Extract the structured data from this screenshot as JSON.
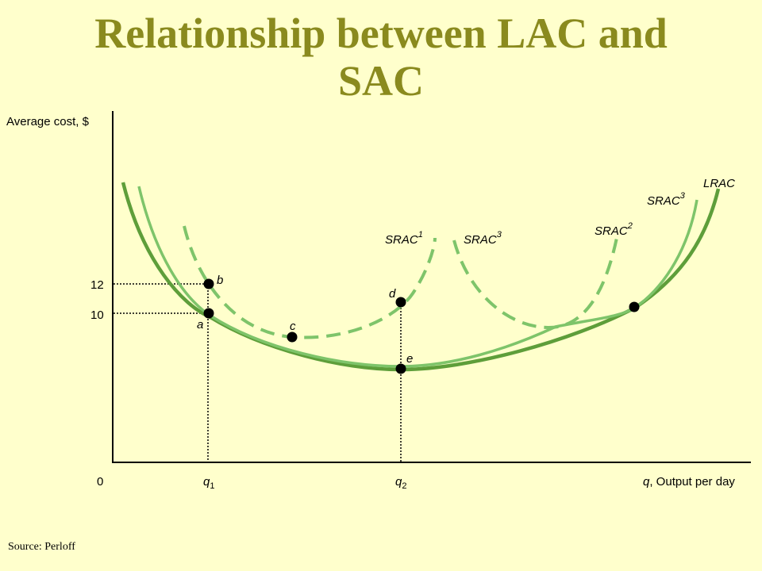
{
  "title": {
    "line1": "Relationship between LAC and",
    "line2": "SAC"
  },
  "source": "Source: Perloff",
  "axes": {
    "y_label": "Average cost, $",
    "x_label_var": "q",
    "x_label_text": ", Output per day",
    "origin": "0",
    "y_ticks": [
      "12",
      "10"
    ],
    "x_ticks": [
      {
        "base": "q",
        "sub": "1"
      },
      {
        "base": "q",
        "sub": "2"
      }
    ]
  },
  "curves": {
    "lrac": "LRAC",
    "srac1": {
      "base": "SRAC",
      "sub": "1"
    },
    "srac2": {
      "base": "SRAC",
      "sub": "2"
    },
    "srac3_left": {
      "base": "SRAC",
      "sub": "3"
    },
    "srac3_right": {
      "base": "SRAC",
      "sub": "3"
    }
  },
  "points": {
    "a": "a",
    "b": "b",
    "c": "c",
    "d": "d",
    "e": "e"
  },
  "colors": {
    "background": "#FFFFCC",
    "title": "#8A8A1E",
    "lrac": "#5E9E3A",
    "srac": "#7EC46A",
    "dashed": "#7EC46A"
  }
}
